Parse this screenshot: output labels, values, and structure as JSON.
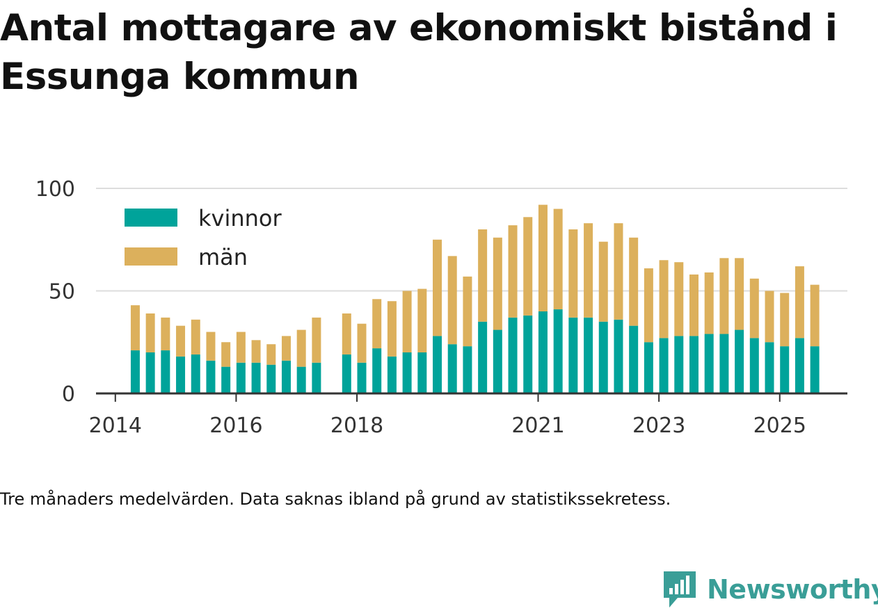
{
  "title": "Antal mottagare av ekonomiskt bistånd i Essunga kommun",
  "note": "Tre månaders medelvärden. Data saknas ibland på grund av statistikssekretess.",
  "brand": {
    "name": "Newsworthy",
    "icon": "newsworthy-logo-icon"
  },
  "colors": {
    "kvinnor": "#00a39a",
    "man": "#dcb05c",
    "grid": "#dddddd",
    "axis": "#333333",
    "brand": "#3a9e97"
  },
  "chart_data": {
    "type": "bar",
    "stacked": true,
    "title": "Antal mottagare av ekonomiskt bistånd i Essunga kommun",
    "xlabel": "",
    "ylabel": "",
    "ylim": [
      0,
      100
    ],
    "yticks": [
      0,
      50,
      100
    ],
    "xticks": [
      {
        "label": "2014",
        "x": 2014.0
      },
      {
        "label": "2016",
        "x": 2016.0
      },
      {
        "label": "2018",
        "x": 2018.0
      },
      {
        "label": "2021",
        "x": 2021.0
      },
      {
        "label": "2023",
        "x": 2023.0
      },
      {
        "label": "2025",
        "x": 2025.0
      }
    ],
    "legend": {
      "position": "top-left",
      "entries": [
        "kvinnor",
        "män"
      ]
    },
    "x": [
      2014.33,
      2014.58,
      2014.83,
      2015.08,
      2015.33,
      2015.58,
      2015.83,
      2016.08,
      2016.33,
      2016.58,
      2016.83,
      2017.08,
      2017.33,
      2017.83,
      2018.08,
      2018.33,
      2018.58,
      2018.83,
      2019.08,
      2019.33,
      2019.58,
      2019.83,
      2020.08,
      2020.33,
      2020.58,
      2020.83,
      2021.08,
      2021.33,
      2021.58,
      2021.83,
      2022.08,
      2022.33,
      2022.58,
      2022.83,
      2023.08,
      2023.33,
      2023.58,
      2023.83,
      2024.08,
      2024.33,
      2024.58,
      2024.83,
      2025.08,
      2025.33,
      2025.58
    ],
    "series": [
      {
        "name": "kvinnor",
        "values": [
          21,
          20,
          21,
          18,
          19,
          16,
          13,
          15,
          15,
          14,
          16,
          13,
          15,
          19,
          15,
          22,
          18,
          20,
          20,
          28,
          24,
          23,
          35,
          31,
          37,
          38,
          40,
          41,
          37,
          37,
          35,
          36,
          33,
          25,
          27,
          28,
          28,
          29,
          29,
          31,
          27,
          25,
          23,
          27,
          23
        ]
      },
      {
        "name": "män",
        "values": [
          22,
          19,
          16,
          15,
          17,
          14,
          12,
          15,
          11,
          10,
          12,
          18,
          22,
          20,
          19,
          24,
          27,
          30,
          31,
          47,
          43,
          34,
          45,
          45,
          45,
          48,
          52,
          49,
          43,
          46,
          39,
          47,
          43,
          36,
          38,
          36,
          30,
          30,
          37,
          35,
          29,
          25,
          26,
          35,
          30
        ]
      }
    ]
  }
}
